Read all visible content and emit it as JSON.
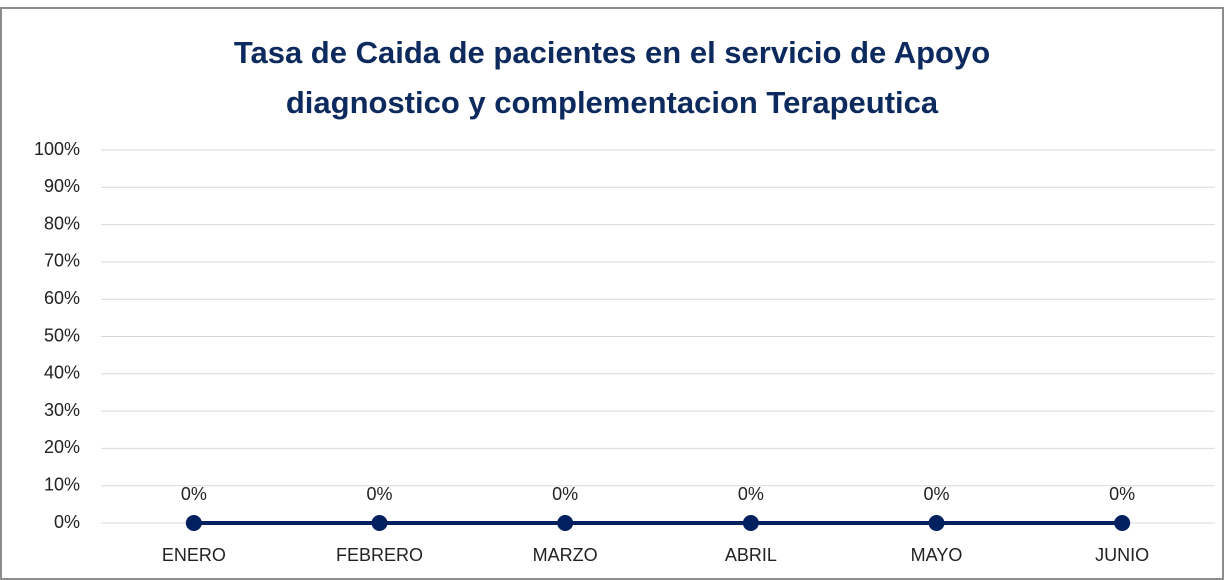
{
  "chart_data": {
    "type": "line",
    "title": "Tasa de Caida de pacientes en el servicio de Apoyo diagnostico y complementacion Terapeutica",
    "categories": [
      "ENERO",
      "FEBRERO",
      "MARZO",
      "ABRIL",
      "MAYO",
      "JUNIO"
    ],
    "series": [
      {
        "name": null,
        "color": "#002060",
        "values": [
          0,
          0,
          0,
          0,
          0,
          0
        ],
        "value_labels": [
          "0%",
          "0%",
          "0%",
          "0%",
          "0%",
          "0%"
        ]
      }
    ],
    "ylim": [
      0,
      100
    ],
    "yticks": [
      {
        "value": 0,
        "label": "0%"
      },
      {
        "value": 10,
        "label": "10%"
      },
      {
        "value": 20,
        "label": "20%"
      },
      {
        "value": 30,
        "label": "30%"
      },
      {
        "value": 40,
        "label": "40%"
      },
      {
        "value": 50,
        "label": "50%"
      },
      {
        "value": 60,
        "label": "60%"
      },
      {
        "value": 70,
        "label": "70%"
      },
      {
        "value": 80,
        "label": "80%"
      },
      {
        "value": 90,
        "label": "90%"
      },
      {
        "value": 100,
        "label": "100%"
      }
    ],
    "grid": true
  }
}
